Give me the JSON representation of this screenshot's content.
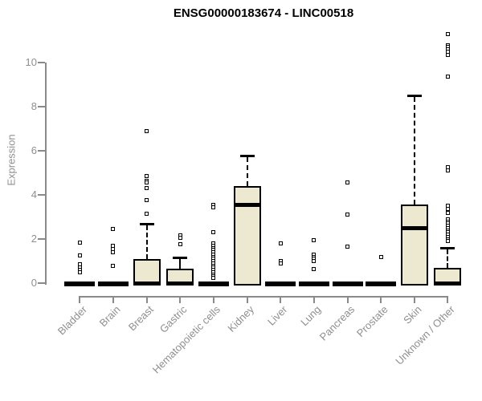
{
  "title": "ENSG00000183674 - LINC00518",
  "colors": {
    "box_fill": "#EDE8D0",
    "box_stroke": "#000000",
    "axis": "#8a8a8a",
    "tick_text": "#8f8f8f",
    "title_text": "#000000"
  },
  "chart_data": {
    "type": "boxplot",
    "title": "ENSG00000183674 - LINC00518",
    "xlabel": "",
    "ylabel": "Expression",
    "ylim": [
      0,
      10
    ],
    "yticks": [
      0,
      2,
      4,
      6,
      8,
      10
    ],
    "grid": false,
    "legend": "none",
    "categories": [
      "Bladder",
      "Brain",
      "Breast",
      "Gastric",
      "Hematopoietic cells",
      "Kidney",
      "Liver",
      "Lung",
      "Pancreas",
      "Prostate",
      "Skin",
      "Unknown / Other"
    ],
    "series": [
      {
        "name": "Bladder",
        "q1": 0,
        "median": 0,
        "q3": 0,
        "whisker_low": 0,
        "whisker_high": 0,
        "outliers": [
          1.85,
          1.25,
          0.85,
          0.7,
          0.6,
          0.5
        ]
      },
      {
        "name": "Brain",
        "q1": 0,
        "median": 0,
        "q3": 0,
        "whisker_low": 0,
        "whisker_high": 0,
        "outliers": [
          2.45,
          1.7,
          1.55,
          1.4,
          0.8
        ]
      },
      {
        "name": "Breast",
        "q1": 0,
        "median": 0,
        "q3": 1.1,
        "whisker_low": 0,
        "whisker_high": 2.7,
        "outliers": [
          6.9,
          4.85,
          4.65,
          4.55,
          4.3,
          3.75,
          3.15
        ]
      },
      {
        "name": "Gastric",
        "q1": 0,
        "median": 0,
        "q3": 0.65,
        "whisker_low": 0,
        "whisker_high": 1.15,
        "outliers": [
          2.15,
          2.05,
          1.75
        ]
      },
      {
        "name": "Hematopoietic cells",
        "q1": 0,
        "median": 0,
        "q3": 0,
        "whisker_low": 0,
        "whisker_high": 0,
        "outliers": [
          3.55,
          3.45,
          2.3,
          1.8,
          1.7,
          1.6,
          1.5,
          1.4,
          1.3,
          1.2,
          1.1,
          1.0,
          0.9,
          0.8,
          0.7,
          0.6,
          0.5,
          0.4,
          0.3,
          0.25
        ]
      },
      {
        "name": "Kidney",
        "q1": 0,
        "median": 3.55,
        "q3": 4.4,
        "whisker_low": 0,
        "whisker_high": 5.8,
        "outliers": []
      },
      {
        "name": "Liver",
        "q1": 0,
        "median": 0,
        "q3": 0,
        "whisker_low": 0,
        "whisker_high": 0,
        "outliers": [
          1.8,
          1.0,
          0.9
        ]
      },
      {
        "name": "Lung",
        "q1": 0,
        "median": 0,
        "q3": 0,
        "whisker_low": 0,
        "whisker_high": 0,
        "outliers": [
          1.95,
          1.3,
          1.2,
          1.1,
          1.0,
          0.65
        ]
      },
      {
        "name": "Pancreas",
        "q1": 0,
        "median": 0,
        "q3": 0,
        "whisker_low": 0,
        "whisker_high": 0,
        "outliers": [
          4.55,
          3.1,
          1.65
        ]
      },
      {
        "name": "Prostate",
        "q1": 0,
        "median": 0,
        "q3": 0,
        "whisker_low": 0,
        "whisker_high": 0,
        "outliers": [
          1.2
        ]
      },
      {
        "name": "Skin",
        "q1": 0,
        "median": 2.5,
        "q3": 3.55,
        "whisker_low": 0,
        "whisker_high": 8.5,
        "outliers": []
      },
      {
        "name": "Unknown / Other",
        "q1": 0,
        "median": 0,
        "q3": 0.7,
        "whisker_low": 0,
        "whisker_high": 1.6,
        "outliers": [
          11.3,
          10.8,
          10.7,
          10.6,
          10.5,
          10.35,
          9.35,
          5.25,
          5.1,
          3.5,
          3.35,
          3.2,
          2.9,
          2.8,
          2.7,
          2.6,
          2.5,
          2.4,
          2.3,
          2.2,
          2.1,
          2.0,
          1.9
        ]
      }
    ]
  }
}
